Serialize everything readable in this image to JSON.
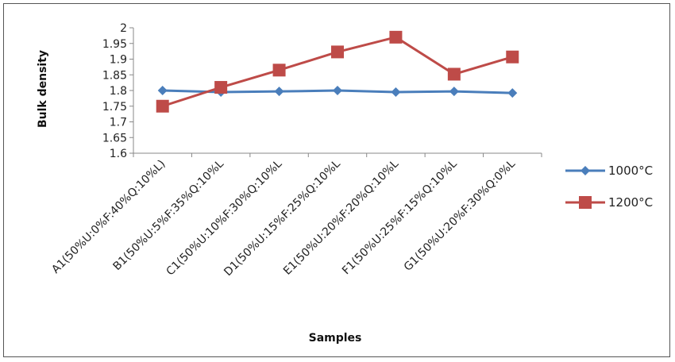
{
  "chart_data": {
    "type": "line",
    "xlabel": "Samples",
    "ylabel": "Bulk density",
    "ylim": [
      1.6,
      2.0
    ],
    "ytick_step": 0.05,
    "yticks": [
      "1.6",
      "1.65",
      "1.7",
      "1.75",
      "1.8",
      "1.85",
      "1.9",
      "1.95",
      "2"
    ],
    "categories": [
      "A1(50%U:0%F:40%Q:10%L)",
      "B1(50%U:5%F:35%Q:10%L",
      "C1(50%U:10%F:30%Q:10%L",
      "D1(50%U:15%F:25%Q:10%L",
      "E1(50%U:20%F:20%Q:10%L",
      "F1(50%U:25%F:15%Q:10%L",
      "G1(50%U:20%F:30%Q:0%L"
    ],
    "series": [
      {
        "name": "1000°C",
        "color": "#4a7ebb",
        "marker": "diamond",
        "values": [
          1.8,
          1.795,
          1.797,
          1.8,
          1.795,
          1.797,
          1.792
        ]
      },
      {
        "name": "1200°C",
        "color": "#be4b48",
        "marker": "square",
        "values": [
          1.75,
          1.81,
          1.865,
          1.923,
          1.97,
          1.852,
          1.907
        ]
      }
    ],
    "grid": false,
    "legend_position": "right"
  }
}
